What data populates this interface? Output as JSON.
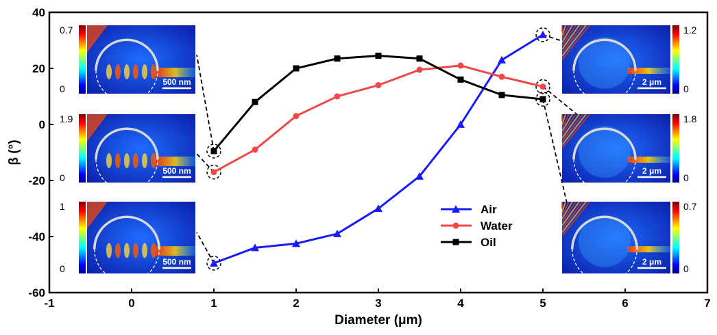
{
  "chart_data": {
    "type": "line",
    "xlabel": "Diameter (μm)",
    "ylabel": "β (°)",
    "xlim": [
      -1,
      7
    ],
    "ylim": [
      -60,
      40
    ],
    "xticks": [
      "-1",
      "0",
      "1",
      "2",
      "3",
      "4",
      "5",
      "6",
      "7"
    ],
    "yticks": [
      "40",
      "20",
      "0",
      "-20",
      "-40",
      "-60"
    ],
    "legend_position": "center-right",
    "series": [
      {
        "name": "Air",
        "color": "#1a1aff",
        "marker": "triangle",
        "x": [
          1,
          1.5,
          2,
          2.5,
          3,
          3.5,
          4,
          4.5,
          5
        ],
        "y": [
          -49.5,
          -44,
          -42.5,
          -39,
          -30,
          -18.5,
          0,
          23,
          32
        ]
      },
      {
        "name": "Water",
        "color": "#f04848",
        "marker": "circle",
        "x": [
          1,
          1.5,
          2,
          2.5,
          3,
          3.5,
          4,
          4.5,
          5
        ],
        "y": [
          -17,
          -9,
          3,
          10,
          14,
          19.5,
          21,
          17,
          13.5
        ]
      },
      {
        "name": "Oil",
        "color": "#000000",
        "marker": "square",
        "x": [
          1,
          1.5,
          2,
          2.5,
          3,
          3.5,
          4,
          4.5,
          5
        ],
        "y": [
          -9.5,
          8,
          20,
          23.5,
          24.5,
          23.5,
          16,
          10.5,
          9
        ]
      }
    ],
    "insets": [
      {
        "name": "inset-oil-1um",
        "cb_max": "0.7",
        "cb_min": "0",
        "scale": "500 nm"
      },
      {
        "name": "inset-water-1um",
        "cb_max": "1.9",
        "cb_min": "0",
        "scale": "500 nm"
      },
      {
        "name": "inset-air-1um",
        "cb_max": "1",
        "cb_min": "0",
        "scale": "500 nm"
      },
      {
        "name": "inset-air-5um",
        "cb_max": "1.2",
        "cb_min": "0",
        "scale": "2 μm"
      },
      {
        "name": "inset-water-5um",
        "cb_max": "1.8",
        "cb_min": "0",
        "scale": "2 μm"
      },
      {
        "name": "inset-oil-5um",
        "cb_max": "0.7",
        "cb_min": "0",
        "scale": "2 μm"
      }
    ]
  }
}
